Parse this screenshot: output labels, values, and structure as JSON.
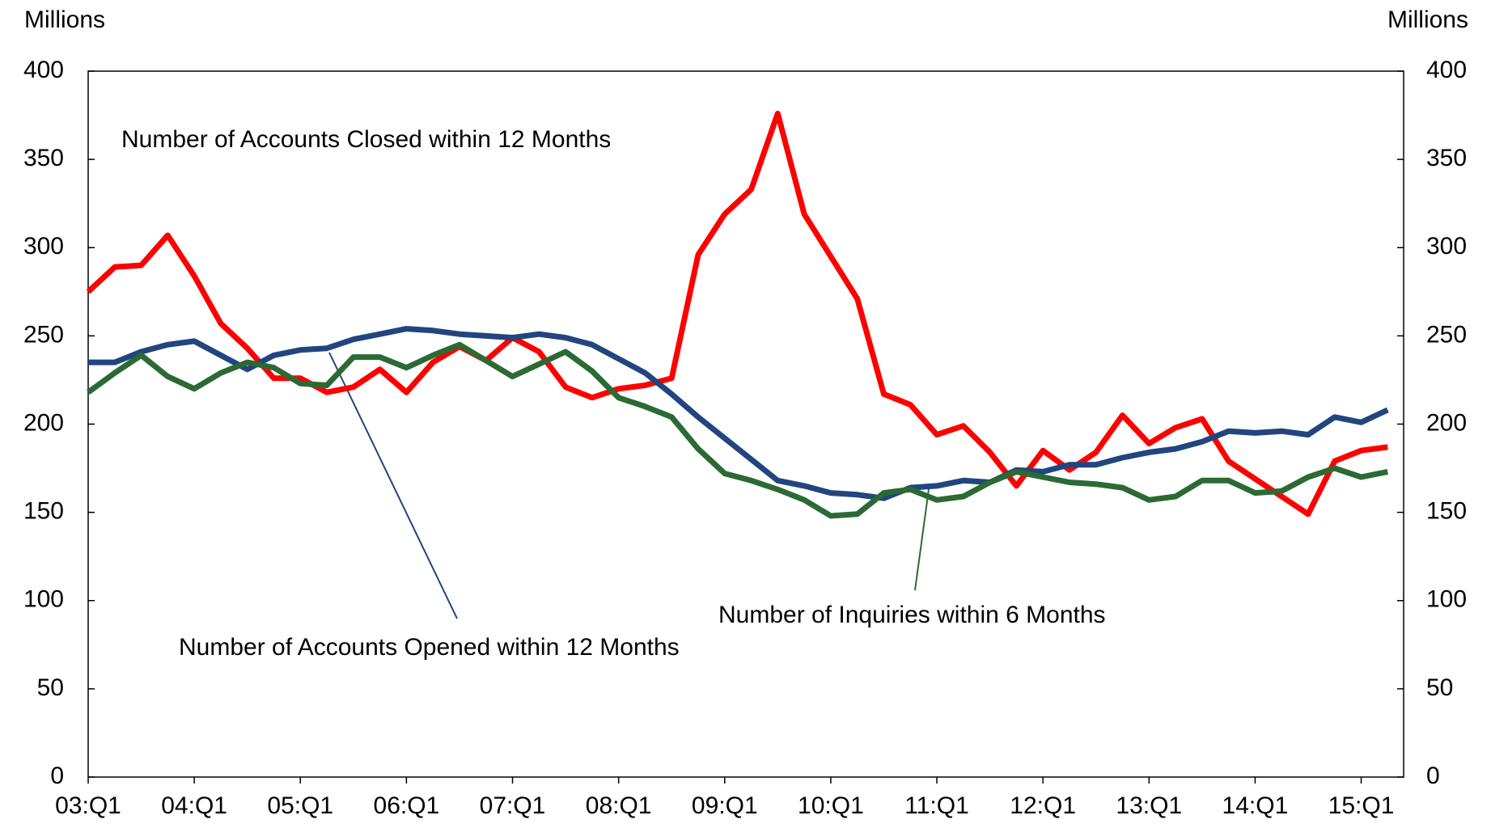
{
  "chart_data": {
    "type": "line",
    "y_label": "Millions",
    "y2_label": "Millions",
    "categories": [
      "03:Q1",
      null,
      null,
      null,
      "04:Q1",
      null,
      null,
      null,
      "05:Q1",
      null,
      null,
      null,
      "06:Q1",
      null,
      null,
      null,
      "07:Q1",
      null,
      null,
      null,
      "08:Q1",
      null,
      null,
      null,
      "09:Q1",
      null,
      null,
      null,
      "10:Q1",
      null,
      null,
      null,
      "11:Q1",
      null,
      null,
      null,
      "12:Q1",
      null,
      null,
      null,
      "13:Q1",
      null,
      null,
      null,
      "14:Q1",
      null,
      null,
      null,
      "15:Q1",
      null
    ],
    "series": [
      {
        "name": "Number of Accounts Closed within 12 Months",
        "color": "#ff0000",
        "values": [
          275,
          289,
          290,
          307,
          284,
          257,
          243,
          226,
          226,
          218,
          221,
          231,
          218,
          235,
          244,
          236,
          249,
          241,
          221,
          215,
          220,
          222,
          226,
          296,
          319,
          333,
          376,
          319,
          295,
          271,
          217,
          211,
          194,
          199,
          184,
          165,
          185,
          174,
          184,
          205,
          189,
          198,
          203,
          179,
          169,
          159,
          149,
          179,
          185,
          187
        ]
      },
      {
        "name": "Number of Accounts Opened within 12 Months",
        "color": "#21457f",
        "values": [
          235,
          235,
          241,
          245,
          247,
          239,
          231,
          239,
          242,
          243,
          248,
          251,
          254,
          253,
          251,
          250,
          249,
          251,
          249,
          245,
          237,
          229,
          217,
          204,
          192,
          180,
          168,
          165,
          161,
          160,
          158,
          164,
          165,
          168,
          167,
          174,
          173,
          177,
          177,
          181,
          184,
          186,
          190,
          196,
          195,
          196,
          194,
          204,
          201,
          208
        ]
      },
      {
        "name": "Number of Inquiries within 6 Months",
        "color": "#2b6a34",
        "values": [
          218,
          229,
          239,
          227,
          220,
          229,
          235,
          232,
          223,
          222,
          238,
          238,
          232,
          239,
          245,
          236,
          227,
          234,
          241,
          230,
          215,
          210,
          204,
          186,
          172,
          168,
          163,
          157,
          148,
          149,
          161,
          163,
          157,
          159,
          167,
          173,
          170,
          167,
          166,
          164,
          157,
          159,
          168,
          168,
          161,
          162,
          170,
          175,
          170,
          173
        ]
      }
    ],
    "ylim": [
      0,
      400
    ],
    "yticks": [
      0,
      50,
      100,
      150,
      200,
      250,
      300,
      350,
      400
    ],
    "y2lim": [
      0,
      400
    ],
    "y2ticks": [
      0,
      50,
      100,
      150,
      200,
      250,
      300,
      350,
      400
    ],
    "grid": false
  }
}
